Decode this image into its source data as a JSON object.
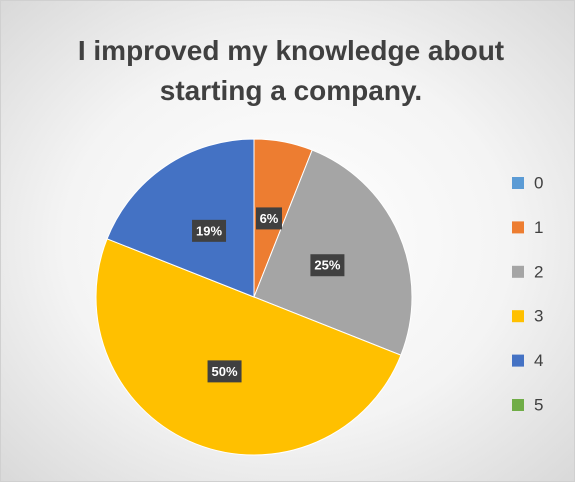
{
  "chart_data": {
    "type": "pie",
    "title": "I improved my knowledge about starting a company.",
    "categories": [
      "0",
      "1",
      "2",
      "3",
      "4",
      "5"
    ],
    "values": [
      0,
      6,
      25,
      50,
      19,
      0
    ],
    "value_labels": [
      null,
      "6%",
      "25%",
      "50%",
      "19%",
      null
    ],
    "colors": [
      "#5b9bd5",
      "#ed7d31",
      "#a5a5a5",
      "#ffc000",
      "#4472c4",
      "#70ad47"
    ],
    "legend": "right"
  }
}
